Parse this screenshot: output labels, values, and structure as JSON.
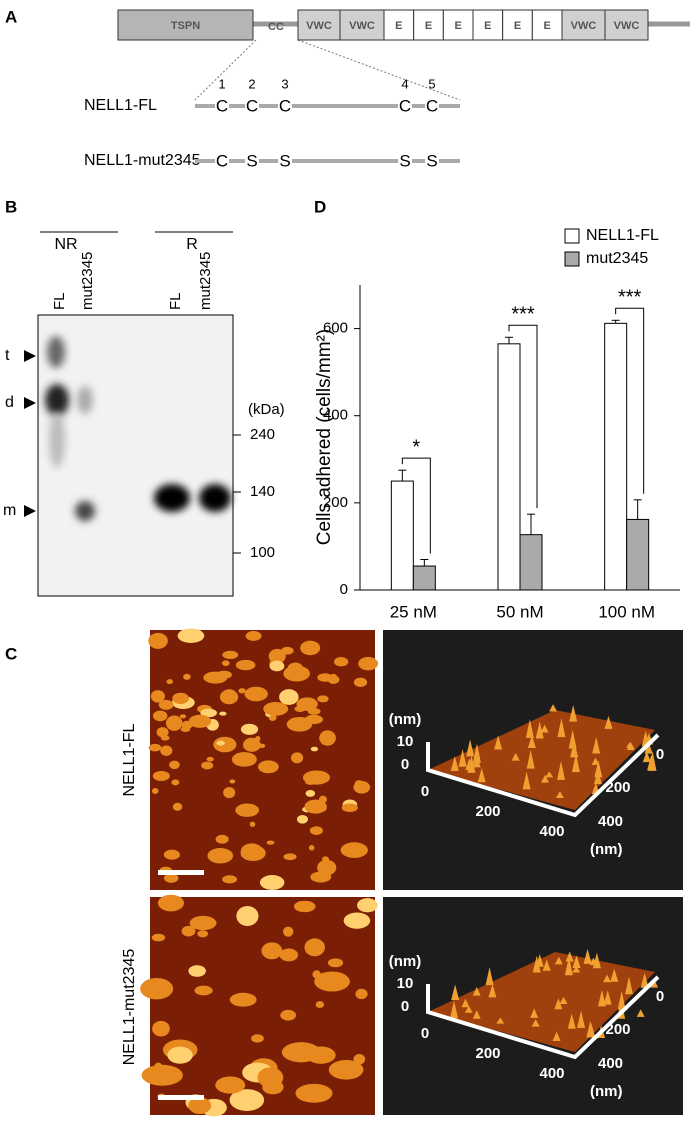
{
  "panel_labels": [
    "A",
    "B",
    "C",
    "D"
  ],
  "panel_a": {
    "domains": [
      "TSPN",
      "CC",
      "VWC",
      "VWC",
      "E",
      "E",
      "E",
      "E",
      "E",
      "E",
      "VWC",
      "VWC"
    ],
    "constructs": [
      {
        "name": "NELL1-FL",
        "residues": [
          "C",
          "C",
          "C",
          "C",
          "C"
        ],
        "positions": [
          "1",
          "2",
          "3",
          "4",
          "5"
        ]
      },
      {
        "name": "NELL1-mut2345",
        "residues": [
          "C",
          "S",
          "S",
          "S",
          "S"
        ]
      }
    ]
  },
  "panel_b": {
    "groups": [
      "NR",
      "R"
    ],
    "lanes": [
      "FL",
      "mut2345",
      "FL",
      "mut2345"
    ],
    "bands": [
      "t",
      "d",
      "m"
    ],
    "unit": "(kDa)",
    "markers": [
      "240",
      "140",
      "100"
    ]
  },
  "panel_c": {
    "rows": [
      "NELL1-FL",
      "NELL1-mut2345"
    ],
    "plot_labels": {
      "z_unit": "(nm)",
      "z_ticks": [
        "10",
        "0"
      ],
      "x_ticks": [
        "0",
        "200",
        "400"
      ],
      "x_unit": "(nm)",
      "y_ticks": [
        "0",
        "200",
        "400"
      ],
      "y_unit": "(nm)"
    }
  },
  "chart_data": {
    "type": "bar",
    "y_label": "Cells adhered (cells/mm²)",
    "categories": [
      "25 nM",
      "50 nM",
      "100 nM"
    ],
    "series": [
      {
        "name": "NELL1-FL",
        "color": "#ffffff",
        "values": [
          250,
          565,
          612
        ],
        "errors": [
          25,
          15,
          7
        ]
      },
      {
        "name": "mut2345",
        "color": "#aaaaaa",
        "values": [
          55,
          127,
          162
        ],
        "errors": [
          15,
          47,
          45
        ]
      }
    ],
    "significance": [
      "*",
      "***",
      "***"
    ],
    "ylim": [
      0,
      700
    ],
    "yticks": [
      0,
      200,
      400,
      600
    ],
    "legend": "top-right"
  }
}
